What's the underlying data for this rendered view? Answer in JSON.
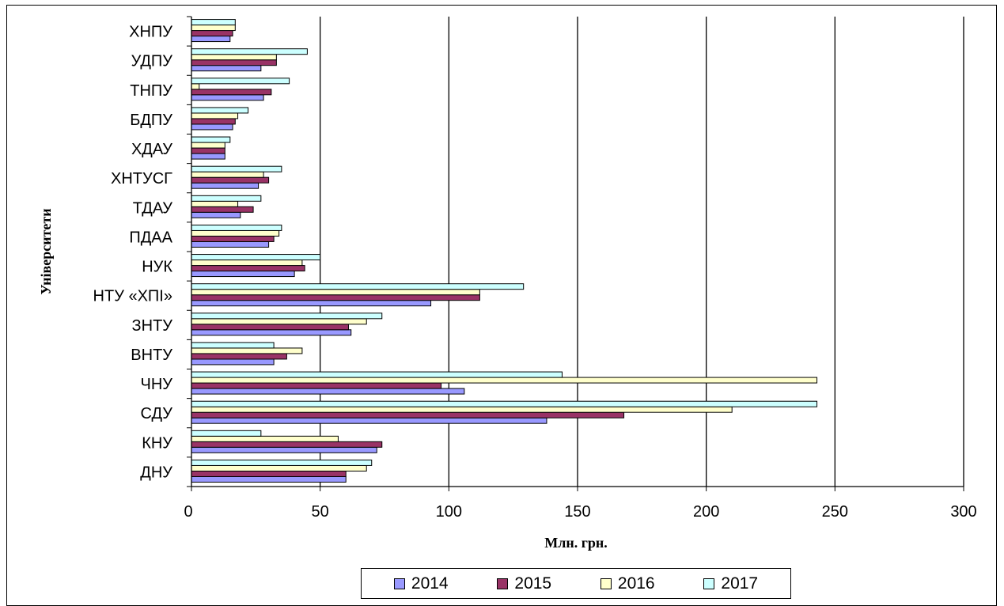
{
  "chart_data": {
    "type": "bar",
    "orientation": "horizontal",
    "title": "",
    "xlabel": "Млн. грн.",
    "ylabel": "Університети",
    "xlim": [
      0,
      300
    ],
    "xticks": [
      0,
      50,
      100,
      150,
      200,
      250,
      300
    ],
    "grid": "vertical",
    "legend_position": "bottom",
    "categories": [
      "ДНУ",
      "КНУ",
      "СДУ",
      "ЧНУ",
      "ВНТУ",
      "ЗНТУ",
      "НТУ «ХПІ»",
      "НУК",
      "ПДАА",
      "ТДАУ",
      "ХНТУСГ",
      "ХДАУ",
      "БДПУ",
      "ТНПУ",
      "УДПУ",
      "ХНПУ"
    ],
    "series": [
      {
        "name": "2014",
        "color": "#9999ff",
        "values": [
          60,
          72,
          138,
          106,
          32,
          62,
          93,
          40,
          30,
          19,
          26,
          13,
          16,
          28,
          27,
          15
        ]
      },
      {
        "name": "2015",
        "color": "#993366",
        "values": [
          60,
          74,
          168,
          97,
          37,
          61,
          112,
          44,
          32,
          24,
          30,
          13,
          17,
          31,
          33,
          16
        ]
      },
      {
        "name": "2016",
        "color": "#ffffcc",
        "values": [
          68,
          57,
          210,
          243,
          43,
          68,
          112,
          43,
          34,
          18,
          28,
          13,
          18,
          3,
          33,
          17
        ]
      },
      {
        "name": "2017",
        "color": "#ccffff",
        "values": [
          70,
          27,
          243,
          144,
          32,
          74,
          129,
          50,
          35,
          27,
          35,
          15,
          22,
          38,
          45,
          17
        ]
      }
    ]
  }
}
